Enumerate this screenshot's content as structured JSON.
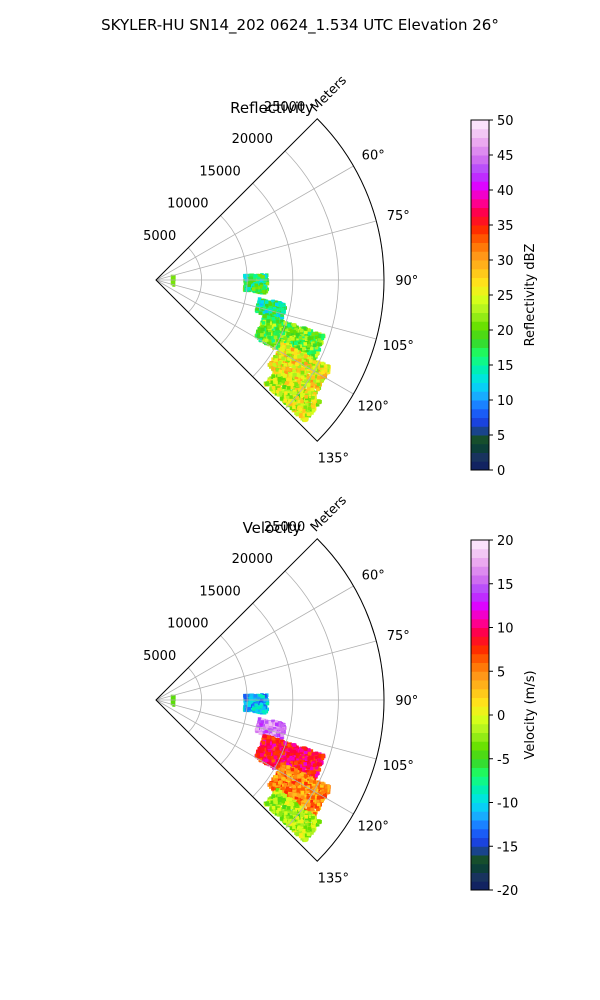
{
  "figure": {
    "title": "SKYLER-HU  SN14_202  0624_1.534 UTC Elevation 26°"
  },
  "chart_data": [
    {
      "type": "heatmap",
      "subtype": "polar-sector",
      "title": "Reflectivity",
      "range_label": "Meters",
      "range_ticks": [
        5000,
        10000,
        15000,
        20000,
        25000
      ],
      "range_max": 25000,
      "azimuth_ticks": [
        "60°",
        "75°",
        "90°",
        "105°",
        "120°",
        "135°"
      ],
      "azimuth_values": [
        60,
        75,
        90,
        105,
        120,
        135
      ],
      "azimuth_range": [
        45,
        135
      ],
      "grid": true,
      "colorbar": {
        "label": "Reflectivity dBZ",
        "min": 0,
        "max": 50,
        "ticks": [
          0,
          5,
          10,
          15,
          20,
          25,
          30,
          35,
          40,
          45,
          50
        ]
      },
      "echo_regions": [
        {
          "azimuth": 92,
          "range_km": 11.0,
          "extent_deg": 8,
          "extent_km": 2.5,
          "dbz": 17
        },
        {
          "azimuth": 104,
          "range_km": 13.0,
          "extent_deg": 6,
          "extent_km": 3,
          "dbz": 16
        },
        {
          "azimuth": 114,
          "range_km": 16.0,
          "extent_deg": 10,
          "extent_km": 7,
          "dbz": 20
        },
        {
          "azimuth": 122,
          "range_km": 18.5,
          "extent_deg": 9,
          "extent_km": 6,
          "dbz": 26
        },
        {
          "azimuth": 130,
          "range_km": 19.5,
          "extent_deg": 6,
          "extent_km": 6,
          "dbz": 24
        }
      ]
    },
    {
      "type": "heatmap",
      "subtype": "polar-sector",
      "title": "Velocity",
      "range_label": "Meters",
      "range_ticks": [
        5000,
        10000,
        15000,
        20000,
        25000
      ],
      "range_max": 25000,
      "azimuth_ticks": [
        "60°",
        "75°",
        "90°",
        "105°",
        "120°",
        "135°"
      ],
      "azimuth_values": [
        60,
        75,
        90,
        105,
        120,
        135
      ],
      "azimuth_range": [
        45,
        135
      ],
      "grid": true,
      "colorbar": {
        "label": "Velocity (m/s)",
        "min": -20,
        "max": 20,
        "ticks": [
          -20,
          -15,
          -10,
          -5,
          0,
          5,
          10,
          15,
          20
        ]
      },
      "echo_regions": [
        {
          "azimuth": 92,
          "range_km": 11.0,
          "extent_deg": 8,
          "extent_km": 2.5,
          "vel": -11
        },
        {
          "azimuth": 104,
          "range_km": 13.0,
          "extent_deg": 6,
          "extent_km": 3,
          "vel": 16
        },
        {
          "azimuth": 114,
          "range_km": 16.0,
          "extent_deg": 10,
          "extent_km": 7,
          "vel": 9
        },
        {
          "azimuth": 122,
          "range_km": 18.5,
          "extent_deg": 9,
          "extent_km": 6,
          "vel": 5
        },
        {
          "azimuth": 130,
          "range_km": 19.5,
          "extent_deg": 6,
          "extent_km": 6,
          "vel": -2
        }
      ]
    }
  ]
}
